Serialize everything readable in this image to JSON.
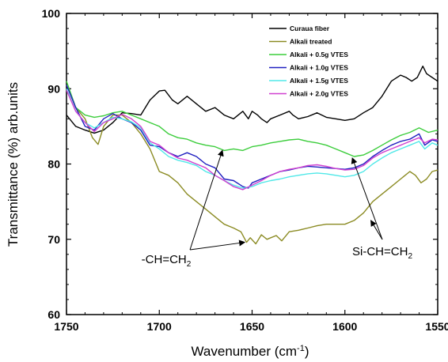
{
  "chart_data": {
    "type": "line",
    "xlabel": "Wavenumber (cm",
    "xlabel_sup": "-1",
    "xlabel_tail": ")",
    "ylabel": "Transmittance (%) arb.units",
    "xlim": [
      1750,
      1550
    ],
    "ylim": [
      60,
      100
    ],
    "x_ticks": [
      "1750",
      "1700",
      "1650",
      "1600",
      "1550"
    ],
    "y_ticks": [
      "60",
      "70",
      "80",
      "90",
      "100"
    ],
    "legend_position": "top-right",
    "series": [
      {
        "name": "Curaua fiber",
        "color": "#000000",
        "points": [
          [
            1750,
            86.5
          ],
          [
            1745,
            85.0
          ],
          [
            1740,
            84.5
          ],
          [
            1735,
            84.1
          ],
          [
            1730,
            84.5
          ],
          [
            1725,
            85.5
          ],
          [
            1720,
            86.8
          ],
          [
            1715,
            86.7
          ],
          [
            1710,
            86.5
          ],
          [
            1705,
            88.5
          ],
          [
            1700,
            89.7
          ],
          [
            1697,
            89.8
          ],
          [
            1693,
            88.5
          ],
          [
            1690,
            88.0
          ],
          [
            1685,
            89.0
          ],
          [
            1680,
            88.0
          ],
          [
            1675,
            87.0
          ],
          [
            1670,
            87.5
          ],
          [
            1665,
            86.5
          ],
          [
            1660,
            86.0
          ],
          [
            1655,
            87.0
          ],
          [
            1652,
            86.0
          ],
          [
            1650,
            87.0
          ],
          [
            1647,
            86.5
          ],
          [
            1645,
            86.0
          ],
          [
            1642,
            85.5
          ],
          [
            1640,
            86.0
          ],
          [
            1635,
            86.5
          ],
          [
            1630,
            87.0
          ],
          [
            1628,
            86.5
          ],
          [
            1625,
            86.0
          ],
          [
            1620,
            86.3
          ],
          [
            1615,
            86.8
          ],
          [
            1610,
            86.2
          ],
          [
            1605,
            86.0
          ],
          [
            1600,
            85.8
          ],
          [
            1595,
            86.0
          ],
          [
            1590,
            86.8
          ],
          [
            1585,
            87.5
          ],
          [
            1580,
            89.0
          ],
          [
            1575,
            91.0
          ],
          [
            1570,
            91.8
          ],
          [
            1567,
            91.5
          ],
          [
            1564,
            91.0
          ],
          [
            1561,
            91.5
          ],
          [
            1558,
            93.0
          ],
          [
            1556,
            92.0
          ],
          [
            1553,
            91.5
          ],
          [
            1550,
            91.0
          ]
        ]
      },
      {
        "name": "Alkali treated",
        "color": "#8b8b23",
        "points": [
          [
            1750,
            90.5
          ],
          [
            1745,
            87.5
          ],
          [
            1740,
            86.0
          ],
          [
            1736,
            83.5
          ],
          [
            1733,
            82.6
          ],
          [
            1730,
            85.0
          ],
          [
            1725,
            86.5
          ],
          [
            1720,
            86.5
          ],
          [
            1715,
            85.5
          ],
          [
            1710,
            84.0
          ],
          [
            1705,
            82.0
          ],
          [
            1700,
            79.0
          ],
          [
            1695,
            78.5
          ],
          [
            1690,
            77.5
          ],
          [
            1685,
            76.0
          ],
          [
            1680,
            75.0
          ],
          [
            1675,
            74.0
          ],
          [
            1670,
            73.0
          ],
          [
            1665,
            72.0
          ],
          [
            1660,
            71.5
          ],
          [
            1656,
            71.0
          ],
          [
            1653,
            69.6
          ],
          [
            1651,
            70.2
          ],
          [
            1648,
            69.4
          ],
          [
            1645,
            70.6
          ],
          [
            1642,
            70.0
          ],
          [
            1640,
            70.2
          ],
          [
            1637,
            70.5
          ],
          [
            1634,
            69.8
          ],
          [
            1630,
            71.0
          ],
          [
            1625,
            71.2
          ],
          [
            1620,
            71.5
          ],
          [
            1615,
            71.8
          ],
          [
            1610,
            72.0
          ],
          [
            1605,
            72.0
          ],
          [
            1600,
            72.0
          ],
          [
            1595,
            72.5
          ],
          [
            1590,
            73.5
          ],
          [
            1585,
            75.0
          ],
          [
            1580,
            76.0
          ],
          [
            1575,
            77.0
          ],
          [
            1570,
            78.0
          ],
          [
            1565,
            79.0
          ],
          [
            1562,
            78.5
          ],
          [
            1559,
            77.5
          ],
          [
            1556,
            78.0
          ],
          [
            1553,
            79.0
          ],
          [
            1550,
            79.2
          ]
        ]
      },
      {
        "name": "Alkali + 0.5g VTES",
        "color": "#3ccd3c",
        "points": [
          [
            1750,
            91.0
          ],
          [
            1745,
            87.5
          ],
          [
            1740,
            86.5
          ],
          [
            1735,
            86.2
          ],
          [
            1730,
            86.4
          ],
          [
            1725,
            86.8
          ],
          [
            1720,
            87.0
          ],
          [
            1715,
            86.5
          ],
          [
            1710,
            86.0
          ],
          [
            1705,
            85.5
          ],
          [
            1700,
            85.0
          ],
          [
            1695,
            84.0
          ],
          [
            1690,
            83.5
          ],
          [
            1685,
            83.3
          ],
          [
            1680,
            82.8
          ],
          [
            1675,
            82.5
          ],
          [
            1670,
            82.3
          ],
          [
            1665,
            81.8
          ],
          [
            1660,
            82.0
          ],
          [
            1655,
            81.8
          ],
          [
            1650,
            82.3
          ],
          [
            1645,
            82.5
          ],
          [
            1640,
            82.8
          ],
          [
            1635,
            83.0
          ],
          [
            1630,
            83.2
          ],
          [
            1625,
            83.3
          ],
          [
            1620,
            83.0
          ],
          [
            1615,
            82.8
          ],
          [
            1610,
            82.5
          ],
          [
            1605,
            82.0
          ],
          [
            1600,
            81.5
          ],
          [
            1595,
            81.0
          ],
          [
            1590,
            81.2
          ],
          [
            1585,
            81.8
          ],
          [
            1580,
            82.5
          ],
          [
            1575,
            83.2
          ],
          [
            1570,
            83.8
          ],
          [
            1565,
            84.2
          ],
          [
            1560,
            84.8
          ],
          [
            1555,
            84.2
          ],
          [
            1550,
            84.5
          ]
        ]
      },
      {
        "name": "Alkali + 1.0g VTES",
        "color": "#2020c0",
        "points": [
          [
            1750,
            90.5
          ],
          [
            1745,
            87.5
          ],
          [
            1740,
            85.0
          ],
          [
            1735,
            84.5
          ],
          [
            1730,
            86.0
          ],
          [
            1725,
            86.7
          ],
          [
            1720,
            86.0
          ],
          [
            1715,
            85.5
          ],
          [
            1710,
            84.5
          ],
          [
            1705,
            82.5
          ],
          [
            1700,
            82.3
          ],
          [
            1695,
            81.5
          ],
          [
            1690,
            81.0
          ],
          [
            1685,
            81.5
          ],
          [
            1680,
            81.0
          ],
          [
            1675,
            80.0
          ],
          [
            1670,
            79.5
          ],
          [
            1665,
            78.0
          ],
          [
            1660,
            77.8
          ],
          [
            1655,
            77.0
          ],
          [
            1652,
            76.8
          ],
          [
            1650,
            77.5
          ],
          [
            1645,
            78.0
          ],
          [
            1640,
            78.5
          ],
          [
            1635,
            79.0
          ],
          [
            1630,
            79.2
          ],
          [
            1625,
            79.5
          ],
          [
            1620,
            79.7
          ],
          [
            1615,
            79.6
          ],
          [
            1610,
            79.5
          ],
          [
            1605,
            79.4
          ],
          [
            1600,
            79.3
          ],
          [
            1595,
            79.5
          ],
          [
            1590,
            80.0
          ],
          [
            1585,
            81.0
          ],
          [
            1580,
            81.8
          ],
          [
            1575,
            82.5
          ],
          [
            1570,
            83.0
          ],
          [
            1565,
            83.3
          ],
          [
            1560,
            84.0
          ],
          [
            1557,
            82.5
          ],
          [
            1553,
            83.2
          ],
          [
            1550,
            83.0
          ]
        ]
      },
      {
        "name": "Alkali + 1.5g VTES",
        "color": "#50e8e8",
        "points": [
          [
            1750,
            90.0
          ],
          [
            1745,
            87.0
          ],
          [
            1740,
            85.5
          ],
          [
            1735,
            84.8
          ],
          [
            1730,
            85.5
          ],
          [
            1725,
            86.2
          ],
          [
            1720,
            86.0
          ],
          [
            1715,
            85.6
          ],
          [
            1710,
            84.8
          ],
          [
            1705,
            82.8
          ],
          [
            1700,
            82.0
          ],
          [
            1695,
            81.0
          ],
          [
            1690,
            80.5
          ],
          [
            1685,
            80.2
          ],
          [
            1680,
            79.8
          ],
          [
            1675,
            79.0
          ],
          [
            1670,
            78.5
          ],
          [
            1665,
            77.8
          ],
          [
            1660,
            77.2
          ],
          [
            1655,
            76.8
          ],
          [
            1650,
            77.0
          ],
          [
            1645,
            77.5
          ],
          [
            1640,
            77.8
          ],
          [
            1635,
            78.0
          ],
          [
            1630,
            78.3
          ],
          [
            1625,
            78.5
          ],
          [
            1620,
            78.7
          ],
          [
            1615,
            78.8
          ],
          [
            1610,
            78.7
          ],
          [
            1605,
            78.5
          ],
          [
            1600,
            78.3
          ],
          [
            1595,
            78.5
          ],
          [
            1590,
            79.0
          ],
          [
            1585,
            80.0
          ],
          [
            1580,
            80.8
          ],
          [
            1575,
            81.5
          ],
          [
            1570,
            82.0
          ],
          [
            1565,
            82.5
          ],
          [
            1560,
            83.0
          ],
          [
            1557,
            82.0
          ],
          [
            1553,
            82.8
          ],
          [
            1550,
            82.5
          ]
        ]
      },
      {
        "name": "Alkali + 2.0g VTES",
        "color": "#d040d0",
        "points": [
          [
            1750,
            89.8
          ],
          [
            1745,
            87.0
          ],
          [
            1740,
            85.5
          ],
          [
            1735,
            84.3
          ],
          [
            1730,
            85.5
          ],
          [
            1725,
            86.0
          ],
          [
            1720,
            86.6
          ],
          [
            1715,
            86.0
          ],
          [
            1710,
            85.0
          ],
          [
            1705,
            83.0
          ],
          [
            1700,
            82.5
          ],
          [
            1695,
            81.5
          ],
          [
            1690,
            80.8
          ],
          [
            1685,
            80.5
          ],
          [
            1680,
            80.0
          ],
          [
            1675,
            79.5
          ],
          [
            1670,
            78.5
          ],
          [
            1665,
            77.8
          ],
          [
            1660,
            77.0
          ],
          [
            1655,
            76.6
          ],
          [
            1650,
            77.2
          ],
          [
            1645,
            77.8
          ],
          [
            1640,
            78.5
          ],
          [
            1635,
            79.0
          ],
          [
            1630,
            79.3
          ],
          [
            1625,
            79.5
          ],
          [
            1620,
            79.8
          ],
          [
            1615,
            79.9
          ],
          [
            1610,
            79.7
          ],
          [
            1605,
            79.4
          ],
          [
            1600,
            79.2
          ],
          [
            1595,
            79.3
          ],
          [
            1590,
            79.8
          ],
          [
            1585,
            80.8
          ],
          [
            1580,
            81.5
          ],
          [
            1575,
            82.0
          ],
          [
            1570,
            82.5
          ],
          [
            1565,
            83.0
          ],
          [
            1560,
            83.5
          ],
          [
            1557,
            82.8
          ],
          [
            1553,
            83.3
          ],
          [
            1550,
            83.2
          ]
        ]
      }
    ],
    "annotations": [
      {
        "label": "-CH=CH",
        "subscript": "2",
        "arrow_targets": [
          [
            1666,
            81.8
          ],
          [
            1654,
            69.6
          ]
        ]
      },
      {
        "label": "Si-CH=CH",
        "subscript": "2",
        "arrow_targets": [
          [
            1596,
            80.8
          ],
          [
            1586,
            72.5
          ]
        ]
      }
    ]
  }
}
